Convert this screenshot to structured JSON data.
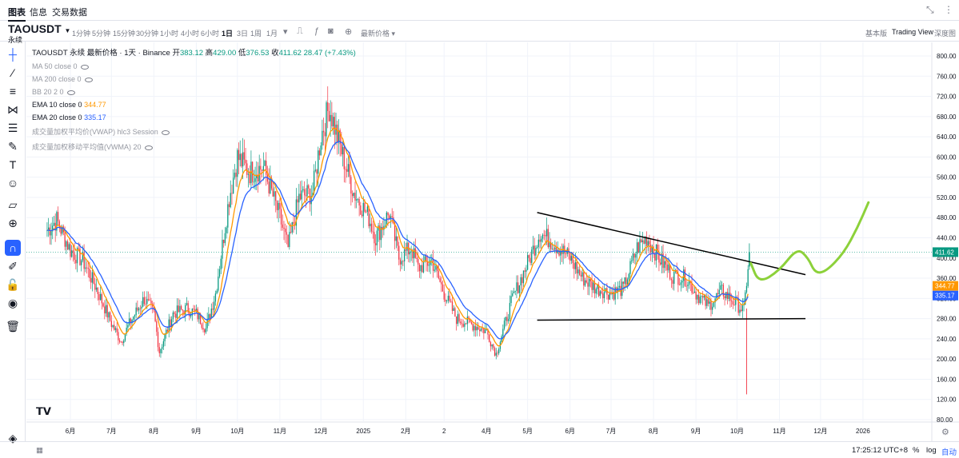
{
  "topnav": {
    "tabs": [
      "图表",
      "信息",
      "交易数据"
    ]
  },
  "toolbar": {
    "symbol": "TAOUSDT",
    "symbol_sub": "永续",
    "timeframes": [
      "1分钟",
      "5分钟",
      "15分钟",
      "30分钟",
      "1小时",
      "4小时",
      "6小时",
      "1日",
      "3日",
      "1周",
      "1月"
    ],
    "active_timeframe": "1日",
    "price_type": "最新价格",
    "views": [
      "基本版",
      "Trading View",
      "深度图"
    ],
    "active_view": "Trading View"
  },
  "legend": {
    "title": "TAOUSDT 永续 最新价格 · 1天 · Binance",
    "open_label": "开",
    "open": "383.12",
    "high_label": "高",
    "high": "429.00",
    "low_label": "低",
    "low": "376.53",
    "close_label": "收",
    "close": "411.62",
    "change": "28.47 (+7.43%)",
    "indicators": [
      {
        "label": "MA 50 close 0",
        "value": "",
        "visible": false
      },
      {
        "label": "MA 200 close 0",
        "value": "",
        "visible": false
      },
      {
        "label": "BB 20 2 0",
        "value": "",
        "visible": false
      },
      {
        "label": "EMA 10 close 0",
        "value": "344.77",
        "visible": true
      },
      {
        "label": "EMA 20 close 0",
        "value": "335.17",
        "visible": true
      },
      {
        "label": "成交量加权平均价(VWAP) hlc3 Session",
        "value": "",
        "visible": false
      },
      {
        "label": "成交量加权移动平均值(VWMA) 20",
        "value": "",
        "visible": false
      }
    ]
  },
  "bottom": {
    "time": "17:25:12 UTC+8",
    "pct": "%",
    "log": "log",
    "auto": "自动"
  },
  "colors": {
    "up": "#089981",
    "down": "#f23645",
    "ema10": "#ff9800",
    "ema20": "#2962ff",
    "projection": "#8cd13a"
  },
  "chart_data": {
    "type": "candlestick",
    "y_ticks": [
      800,
      760,
      720,
      680,
      640,
      600,
      560,
      520,
      480,
      440,
      400,
      360,
      320,
      280,
      240,
      200,
      160,
      120,
      80
    ],
    "y_tick_labels": [
      "800.00",
      "760.00",
      "720.00",
      "680.00",
      "640.00",
      "600.00",
      "560.00",
      "520.00",
      "480.00",
      "440.00",
      "400.00",
      "360.00",
      "320.00",
      "280.00",
      "240.00",
      "200.00",
      "160.00",
      "120.00",
      "80.00"
    ],
    "x_ticks": [
      {
        "label": "6月",
        "date": "2024-06-01"
      },
      {
        "label": "7月",
        "date": "2024-07-01"
      },
      {
        "label": "8月",
        "date": "2024-08-01"
      },
      {
        "label": "9月",
        "date": "2024-09-01"
      },
      {
        "label": "10月",
        "date": "2024-10-01"
      },
      {
        "label": "11月",
        "date": "2024-11-01"
      },
      {
        "label": "12月",
        "date": "2024-12-01"
      },
      {
        "label": "2025",
        "date": "2025-01-01"
      },
      {
        "label": "2月",
        "date": "2025-02-01"
      },
      {
        "label": "2",
        "date": "2025-03-01"
      },
      {
        "label": "4月",
        "date": "2025-04-01"
      },
      {
        "label": "5月",
        "date": "2025-05-01"
      },
      {
        "label": "6月",
        "date": "2025-06-01"
      },
      {
        "label": "7月",
        "date": "2025-07-01"
      },
      {
        "label": "8月",
        "date": "2025-08-01"
      },
      {
        "label": "9月",
        "date": "2025-09-01"
      },
      {
        "label": "10月",
        "date": "2025-10-01"
      },
      {
        "label": "11月",
        "date": "2025-11-01"
      },
      {
        "label": "12月",
        "date": "2025-12-01"
      },
      {
        "label": "2026",
        "date": "2026-01-01"
      }
    ],
    "price_path": [
      [
        "2024-05-15",
        455
      ],
      [
        "2024-05-22",
        475
      ],
      [
        "2024-06-01",
        415
      ],
      [
        "2024-06-10",
        395
      ],
      [
        "2024-06-20",
        340
      ],
      [
        "2024-07-01",
        270
      ],
      [
        "2024-07-08",
        235
      ],
      [
        "2024-07-15",
        275
      ],
      [
        "2024-07-25",
        320
      ],
      [
        "2024-08-01",
        290
      ],
      [
        "2024-08-05",
        215
      ],
      [
        "2024-08-15",
        290
      ],
      [
        "2024-08-25",
        300
      ],
      [
        "2024-09-01",
        290
      ],
      [
        "2024-09-08",
        260
      ],
      [
        "2024-09-15",
        330
      ],
      [
        "2024-09-25",
        520
      ],
      [
        "2024-10-01",
        600
      ],
      [
        "2024-10-10",
        570
      ],
      [
        "2024-10-20",
        580
      ],
      [
        "2024-11-01",
        480
      ],
      [
        "2024-11-07",
        420
      ],
      [
        "2024-11-15",
        520
      ],
      [
        "2024-11-25",
        530
      ],
      [
        "2024-12-01",
        640
      ],
      [
        "2024-12-07",
        700
      ],
      [
        "2024-12-15",
        620
      ],
      [
        "2024-12-25",
        530
      ],
      [
        "2025-01-05",
        480
      ],
      [
        "2025-01-10",
        440
      ],
      [
        "2025-01-20",
        490
      ],
      [
        "2025-01-27",
        400
      ],
      [
        "2025-02-05",
        420
      ],
      [
        "2025-02-10",
        380
      ],
      [
        "2025-02-20",
        395
      ],
      [
        "2025-03-01",
        330
      ],
      [
        "2025-03-10",
        280
      ],
      [
        "2025-03-20",
        270
      ],
      [
        "2025-04-01",
        255
      ],
      [
        "2025-04-08",
        210
      ],
      [
        "2025-04-20",
        320
      ],
      [
        "2025-05-01",
        390
      ],
      [
        "2025-05-10",
        450
      ],
      [
        "2025-05-20",
        430
      ],
      [
        "2025-06-01",
        400
      ],
      [
        "2025-06-10",
        360
      ],
      [
        "2025-06-20",
        340
      ],
      [
        "2025-07-01",
        330
      ],
      [
        "2025-07-10",
        340
      ],
      [
        "2025-07-20",
        420
      ],
      [
        "2025-07-27",
        440
      ],
      [
        "2025-08-05",
        400
      ],
      [
        "2025-08-15",
        365
      ],
      [
        "2025-08-25",
        360
      ],
      [
        "2025-09-01",
        330
      ],
      [
        "2025-09-10",
        305
      ],
      [
        "2025-09-20",
        335
      ],
      [
        "2025-09-30",
        310
      ],
      [
        "2025-10-06",
        295
      ],
      [
        "2025-10-09",
        383.12
      ],
      [
        "2025-10-10",
        411.62
      ]
    ],
    "last_candle": {
      "date": "2025-10-10",
      "open": 383.12,
      "high": 429.0,
      "low": 376.53,
      "close": 411.62
    },
    "flash_crash_low": 130,
    "trendlines": [
      {
        "from": [
          "2025-05-08",
          490
        ],
        "to": [
          "2025-11-20",
          367
        ]
      },
      {
        "from": [
          "2025-05-08",
          277
        ],
        "to": [
          "2025-11-20",
          280
        ]
      }
    ],
    "projection": [
      [
        "2025-10-11",
        390
      ],
      [
        "2025-10-17",
        350
      ],
      [
        "2025-11-01",
        375
      ],
      [
        "2025-11-14",
        420
      ],
      [
        "2025-11-22",
        400
      ],
      [
        "2025-11-27",
        370
      ],
      [
        "2025-12-05",
        373
      ],
      [
        "2025-12-18",
        410
      ],
      [
        "2025-12-28",
        460
      ],
      [
        "2026-01-05",
        510
      ]
    ],
    "price_labels": [
      {
        "value": 411.62,
        "text": "411.62",
        "color": "#089981"
      },
      {
        "value": 344.77,
        "text": "344.77",
        "color": "#ff9800"
      },
      {
        "value": 335.17,
        "text": "335.17",
        "color": "#2962ff"
      }
    ]
  }
}
